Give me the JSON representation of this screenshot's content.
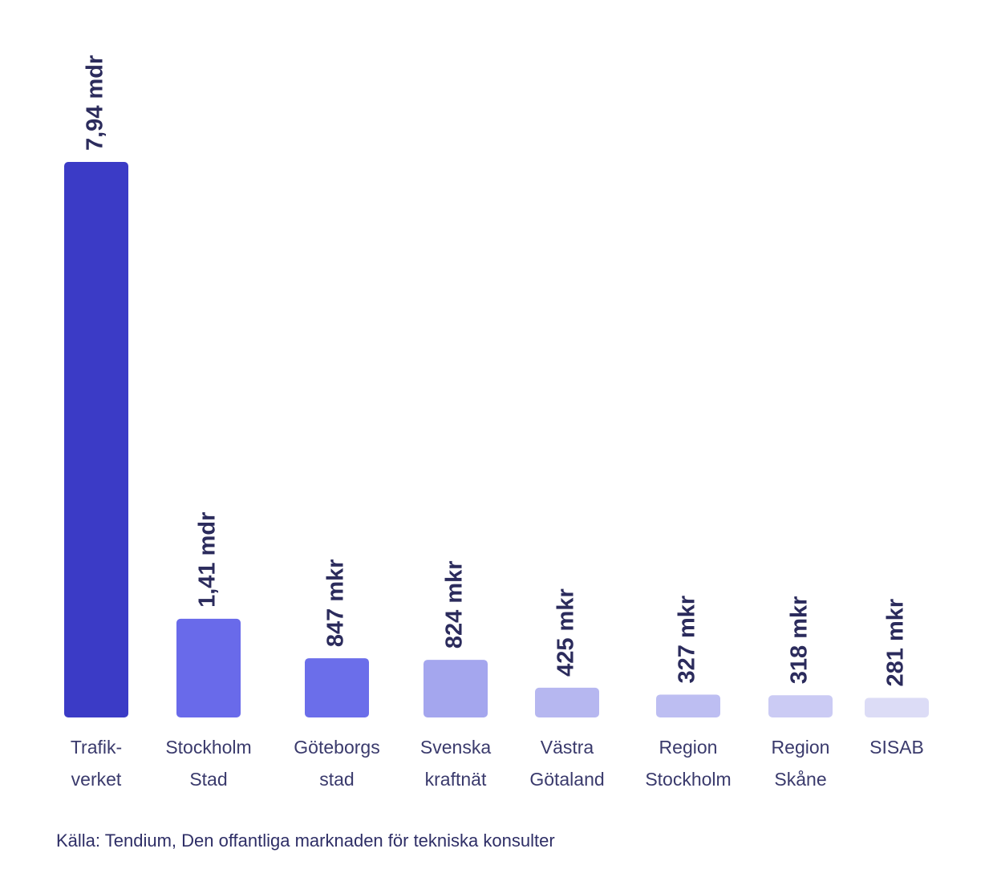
{
  "chart_data": {
    "type": "bar",
    "categories": [
      "Trafik-\nverket",
      "Stockholm\nStad",
      "Göteborgs\nstad",
      "Svenska\nkraftnät",
      "Västra\nGötaland",
      "Region\nStockholm",
      "Region\nSkåne",
      "SISAB"
    ],
    "values": [
      7940,
      1410,
      847,
      824,
      425,
      327,
      318,
      281
    ],
    "value_labels": [
      "7,94 mdr",
      "1,41 mdr",
      "847 mkr",
      "824 mkr",
      "425 mkr",
      "327 mkr",
      "318 mkr",
      "281 mkr"
    ],
    "colors": [
      "#3b3bc6",
      "#696aea",
      "#6b6eea",
      "#a4a6ee",
      "#b6b7f0",
      "#bdbef2",
      "#cbcbf4",
      "#dcdcf6"
    ],
    "source": "Källa: Tendium, Den offantliga marknaden för tekniska konsulter"
  }
}
